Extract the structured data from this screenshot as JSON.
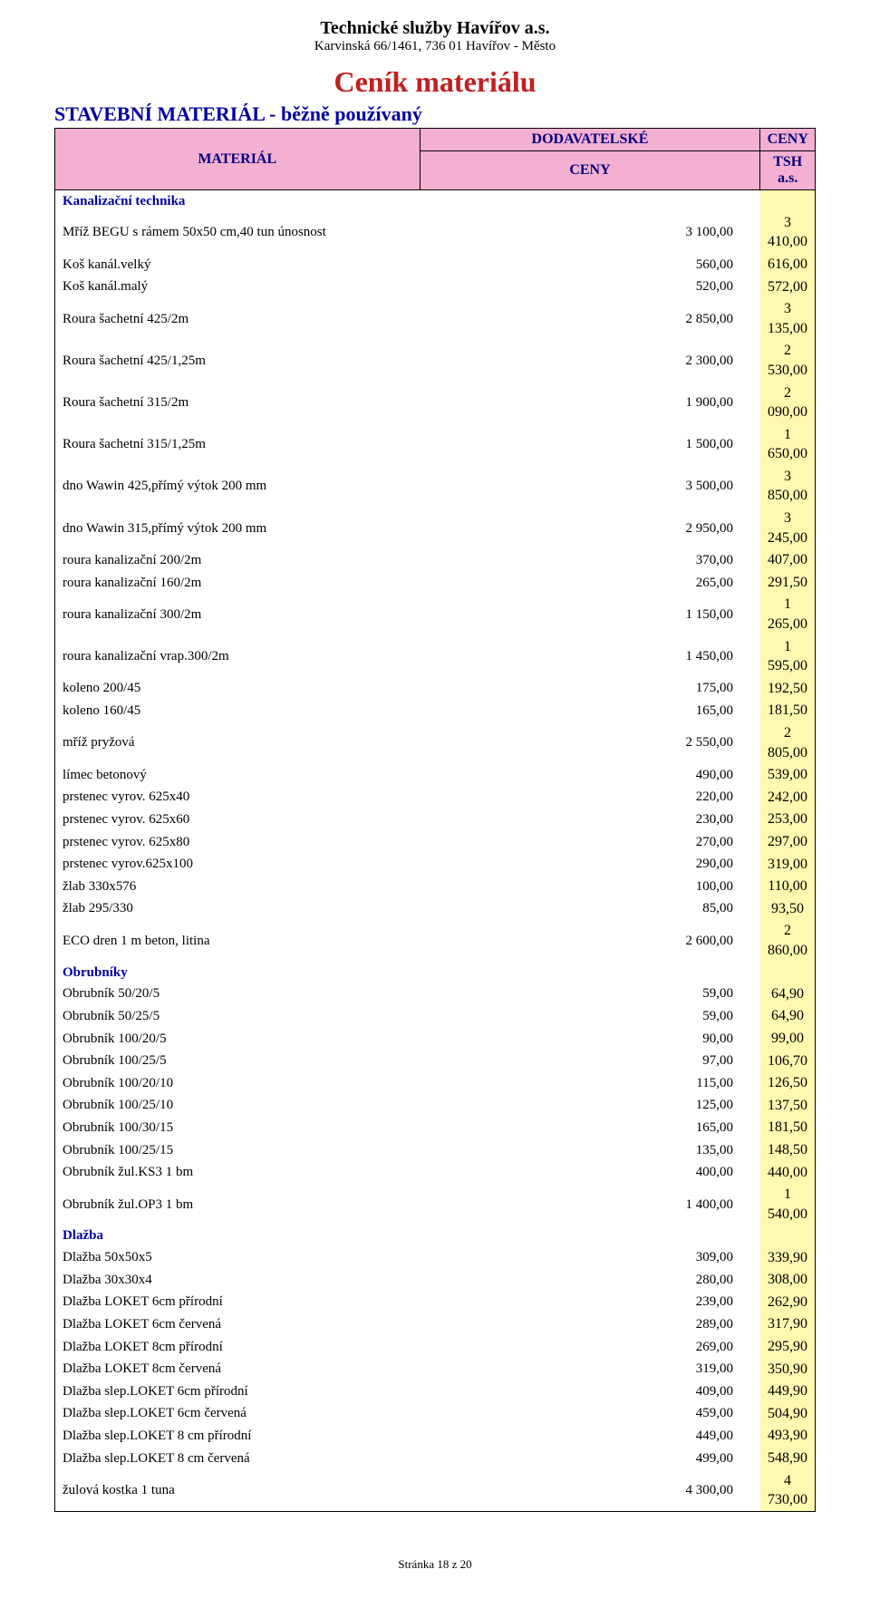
{
  "header": {
    "company_name": "Technické služby Havířov a.s.",
    "company_address": "Karvinská 66/1461, 736 01 Havířov - Město",
    "main_title": "Ceník materiálu",
    "subtitle": "STAVEBNÍ MATERIÁL - běžně používaný"
  },
  "table": {
    "columns": {
      "material": "MATERIÁL",
      "supplier_line1": "DODAVATELSKÉ",
      "supplier_line2": "CENY",
      "tsh_line1": "CENY",
      "tsh_line2": "TSH a.s."
    },
    "sections": [
      {
        "title": "Kanalizační technika",
        "rows": [
          {
            "name": "Mříž BEGU s rámem 50x50 cm,40 tun únosnost",
            "supplier": "3 100,00",
            "tsh": "3 410,00"
          },
          {
            "name": "Koš kanál.velký",
            "supplier": "560,00",
            "tsh": "616,00"
          },
          {
            "name": "Koš kanál.malý",
            "supplier": "520,00",
            "tsh": "572,00"
          },
          {
            "name": "Roura šachetní 425/2m",
            "supplier": "2 850,00",
            "tsh": "3 135,00"
          },
          {
            "name": "Roura šachetní 425/1,25m",
            "supplier": "2 300,00",
            "tsh": "2 530,00"
          },
          {
            "name": "Roura šachetní 315/2m",
            "supplier": "1 900,00",
            "tsh": "2 090,00"
          },
          {
            "name": "Roura šachetní 315/1,25m",
            "supplier": "1 500,00",
            "tsh": "1 650,00"
          },
          {
            "name": "dno Wawin 425,přímý výtok 200 mm",
            "supplier": "3 500,00",
            "tsh": "3 850,00"
          },
          {
            "name": "dno Wawin 315,přímý výtok 200 mm",
            "supplier": "2 950,00",
            "tsh": "3 245,00"
          },
          {
            "name": "roura kanalizační 200/2m",
            "supplier": "370,00",
            "tsh": "407,00"
          },
          {
            "name": "roura kanalizační 160/2m",
            "supplier": "265,00",
            "tsh": "291,50"
          },
          {
            "name": "roura kanalizační 300/2m",
            "supplier": "1 150,00",
            "tsh": "1 265,00"
          },
          {
            "name": "roura kanalizační vrap.300/2m",
            "supplier": "1 450,00",
            "tsh": "1 595,00"
          },
          {
            "name": "koleno 200/45",
            "supplier": "175,00",
            "tsh": "192,50"
          },
          {
            "name": "koleno 160/45",
            "supplier": "165,00",
            "tsh": "181,50"
          },
          {
            "name": "mříž pryžová",
            "supplier": "2 550,00",
            "tsh": "2 805,00"
          },
          {
            "name": "límec betonový",
            "supplier": "490,00",
            "tsh": "539,00"
          },
          {
            "name": "prstenec vyrov. 625x40",
            "supplier": "220,00",
            "tsh": "242,00"
          },
          {
            "name": "prstenec vyrov. 625x60",
            "supplier": "230,00",
            "tsh": "253,00"
          },
          {
            "name": "prstenec vyrov. 625x80",
            "supplier": "270,00",
            "tsh": "297,00"
          },
          {
            "name": "prstenec vyrov.625x100",
            "supplier": "290,00",
            "tsh": "319,00"
          },
          {
            "name": "žlab 330x576",
            "supplier": "100,00",
            "tsh": "110,00"
          },
          {
            "name": "žlab 295/330",
            "supplier": "85,00",
            "tsh": "93,50"
          },
          {
            "name": "ECO dren 1 m beton, litina",
            "supplier": "2 600,00",
            "tsh": "2 860,00"
          }
        ]
      },
      {
        "title": "Obrubníky",
        "rows": [
          {
            "name": "Obrubník 50/20/5",
            "supplier": "59,00",
            "tsh": "64,90"
          },
          {
            "name": "Obrubník 50/25/5",
            "supplier": "59,00",
            "tsh": "64,90"
          },
          {
            "name": "Obrubník 100/20/5",
            "supplier": "90,00",
            "tsh": "99,00"
          },
          {
            "name": "Obrubník 100/25/5",
            "supplier": "97,00",
            "tsh": "106,70"
          },
          {
            "name": "Obrubník 100/20/10",
            "supplier": "115,00",
            "tsh": "126,50"
          },
          {
            "name": "Obrubník 100/25/10",
            "supplier": "125,00",
            "tsh": "137,50"
          },
          {
            "name": "Obrubník 100/30/15",
            "supplier": "165,00",
            "tsh": "181,50"
          },
          {
            "name": "Obrubník 100/25/15",
            "supplier": "135,00",
            "tsh": "148,50"
          },
          {
            "name": "Obrubník žul.KS3 1 bm",
            "supplier": "400,00",
            "tsh": "440,00"
          },
          {
            "name": "Obrubník žul.OP3 1 bm",
            "supplier": "1 400,00",
            "tsh": "1 540,00"
          }
        ]
      },
      {
        "title": "Dlažba",
        "rows": [
          {
            "name": "Dlažba 50x50x5",
            "supplier": "309,00",
            "tsh": "339,90"
          },
          {
            "name": "Dlažba 30x30x4",
            "supplier": "280,00",
            "tsh": "308,00"
          },
          {
            "name": "Dlažba LOKET 6cm přírodní",
            "supplier": "239,00",
            "tsh": "262,90"
          },
          {
            "name": "Dlažba LOKET 6cm červená",
            "supplier": "289,00",
            "tsh": "317,90"
          },
          {
            "name": "Dlažba LOKET 8cm přírodní",
            "supplier": "269,00",
            "tsh": "295,90"
          },
          {
            "name": "Dlažba LOKET 8cm červená",
            "supplier": "319,00",
            "tsh": "350,90"
          },
          {
            "name": "Dlažba slep.LOKET 6cm přírodní",
            "supplier": "409,00",
            "tsh": "449,90"
          },
          {
            "name": "Dlažba slep.LOKET 6cm červená",
            "supplier": "459,00",
            "tsh": "504,90"
          },
          {
            "name": "Dlažba slep.LOKET 8 cm přírodní",
            "supplier": "449,00",
            "tsh": "493,90"
          },
          {
            "name": "Dlažba slep.LOKET 8 cm červená",
            "supplier": "499,00",
            "tsh": "548,90"
          },
          {
            "name": "žulová kostka 1 tuna",
            "supplier": "4 300,00",
            "tsh": "4 730,00"
          }
        ]
      }
    ]
  },
  "footer": {
    "page_info": "Stránka 18 z 20"
  }
}
